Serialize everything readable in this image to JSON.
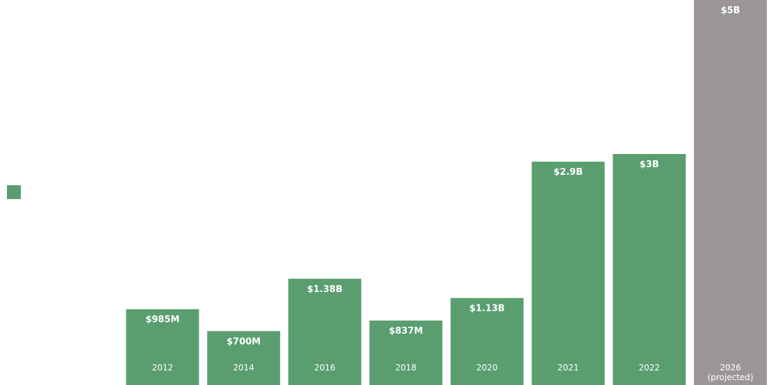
{
  "chart_data": {
    "type": "bar",
    "categories": [
      "2012",
      "2014",
      "2016",
      "2018",
      "2020",
      "2021",
      "2022",
      "2026"
    ],
    "category_notes": [
      "",
      "",
      "",
      "",
      "",
      "",
      "",
      "(projected)"
    ],
    "values": [
      985,
      700,
      1380,
      837,
      1130,
      2900,
      3000,
      5000
    ],
    "value_labels": [
      "$985M",
      "$700M",
      "$1.38B",
      "$837M",
      "$1.13B",
      "$2.9B",
      "$3B",
      "$5B"
    ],
    "projected": [
      false,
      false,
      false,
      false,
      false,
      false,
      false,
      true
    ],
    "unit": "$M",
    "ylim": [
      0,
      5000
    ],
    "grid": false,
    "legend": {
      "placement": "left",
      "entries": [
        {
          "label": "",
          "color": "#5a9e6f"
        }
      ]
    },
    "colors": {
      "actual": "#5a9e6f",
      "projected": "#9a9696",
      "label_text": "#ffffff"
    }
  }
}
